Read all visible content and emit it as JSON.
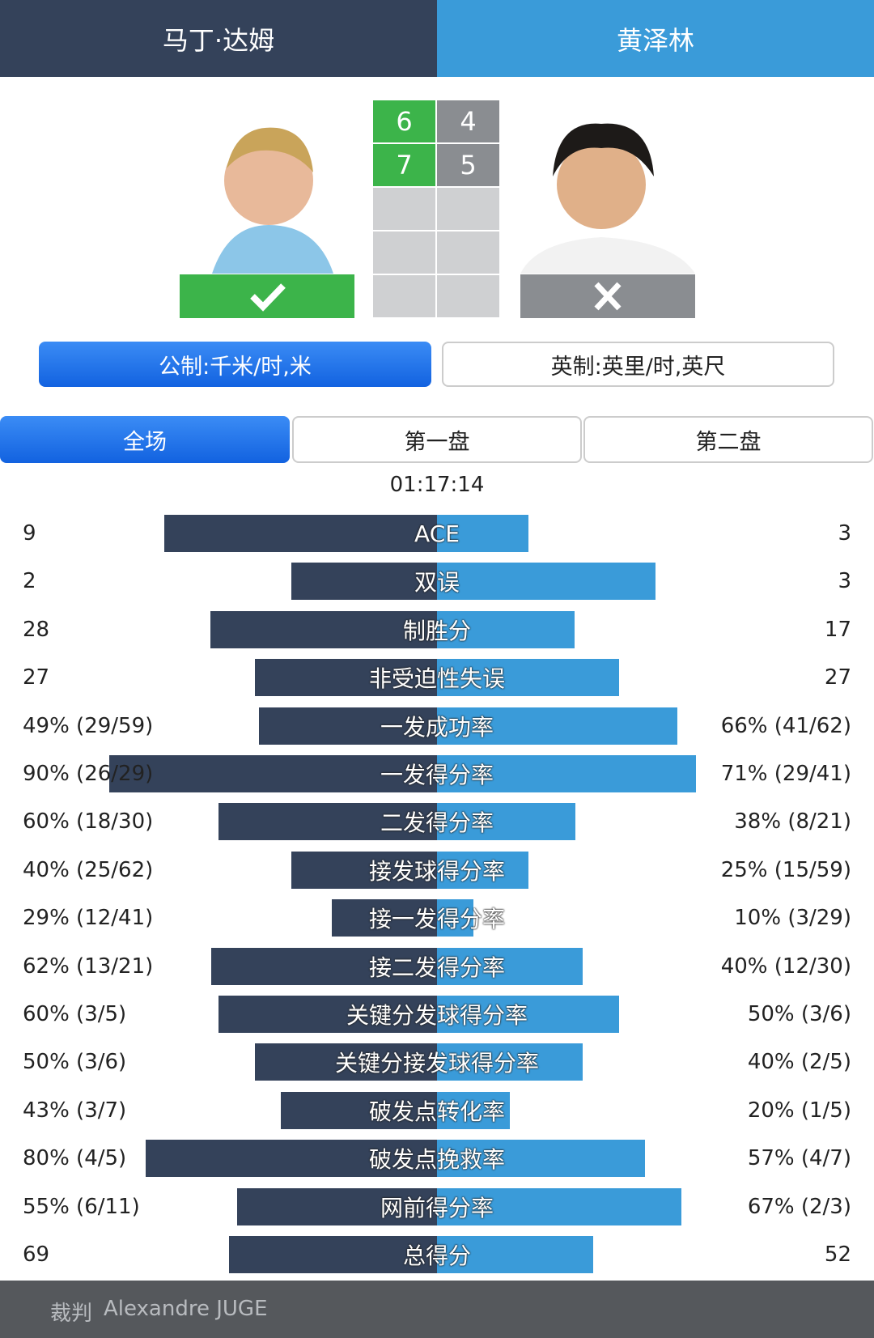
{
  "header": {
    "left_player": "马丁·达姆",
    "right_player": "黄泽林"
  },
  "score": {
    "sets": [
      [
        6,
        4
      ],
      [
        7,
        5
      ]
    ]
  },
  "units": [
    "公制:千米/时,米",
    "英制:英里/时,英尺"
  ],
  "tabs": [
    "全场",
    "第一盘",
    "第二盘"
  ],
  "duration": "01:17:14",
  "stats": [
    {
      "name": "ACE",
      "left": 9,
      "right": 3
    },
    {
      "name": "双误",
      "left": 2,
      "right": 3
    },
    {
      "name": "制胜分",
      "left": 28,
      "right": 17
    },
    {
      "name": "非受迫性失误",
      "left": 27,
      "right": 27
    },
    {
      "name": "一发成功率",
      "left": 49,
      "left_label": "49% (29/59)",
      "right": 66,
      "right_label": "66% (41/62)"
    },
    {
      "name": "一发得分率",
      "left": 90,
      "left_label": "90% (26/29)",
      "right": 71,
      "right_label": "71% (29/41)"
    },
    {
      "name": "二发得分率",
      "left": 60,
      "left_label": "60% (18/30)",
      "right": 38,
      "right_label": "38% (8/21)"
    },
    {
      "name": "接发球得分率",
      "left": 40,
      "left_label": "40% (25/62)",
      "right": 25,
      "right_label": "25% (15/59)"
    },
    {
      "name": "接一发得分率",
      "left": 29,
      "left_label": "29% (12/41)",
      "right": 10,
      "right_label": "10% (3/29)"
    },
    {
      "name": "接二发得分率",
      "left": 62,
      "left_label": "62% (13/21)",
      "right": 40,
      "right_label": "40% (12/30)"
    },
    {
      "name": "关键分发球得分率",
      "left": 60,
      "left_label": "60% (3/5)",
      "right": 50,
      "right_label": "50% (3/6)"
    },
    {
      "name": "关键分接发球得分率",
      "left": 50,
      "left_label": "50% (3/6)",
      "right": 40,
      "right_label": "40% (2/5)"
    },
    {
      "name": "破发点转化率",
      "left": 43,
      "left_label": "43% (3/7)",
      "right": 20,
      "right_label": "20% (1/5)"
    },
    {
      "name": "破发点挽救率",
      "left": 80,
      "left_label": "80% (4/5)",
      "right": 57,
      "right_label": "57% (4/7)"
    },
    {
      "name": "网前得分率",
      "left": 55,
      "left_label": "55% (6/11)",
      "right": 67,
      "right_label": "67% (2/3)"
    },
    {
      "name": "总得分",
      "left": 69,
      "right": 52
    }
  ],
  "footer": {
    "referee_label": "裁判",
    "referee": "Alexandre JUGE"
  }
}
